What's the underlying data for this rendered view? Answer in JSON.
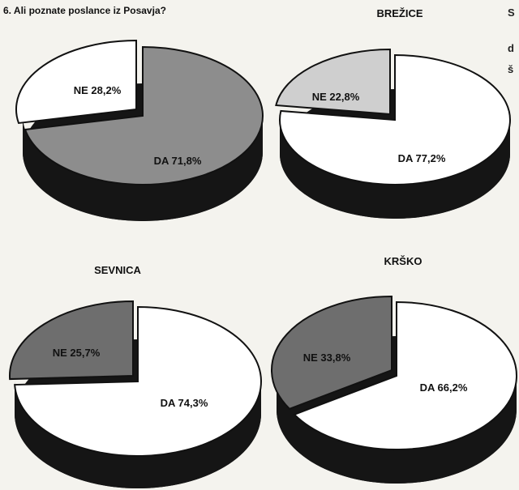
{
  "question": "6. Ali poznate poslance iz Posavja?",
  "edge_text": [
    "S",
    "d",
    "š"
  ],
  "colors": {
    "da_total": "#8d8d8d",
    "ne_brezice": "#cfcfcf",
    "ne_dark": "#6e6e6e",
    "white": "#ffffff",
    "side": "#151515"
  },
  "chart_data": [
    {
      "type": "pie",
      "title": "",
      "slices": [
        {
          "label": "DA",
          "value": 71.8,
          "text": "DA 71,8%"
        },
        {
          "label": "NE",
          "value": 28.2,
          "text": "NE 28,2%"
        }
      ]
    },
    {
      "type": "pie",
      "title": "BREŽICE",
      "slices": [
        {
          "label": "DA",
          "value": 77.2,
          "text": "DA 77,2%"
        },
        {
          "label": "NE",
          "value": 22.8,
          "text": "NE 22,8%"
        }
      ]
    },
    {
      "type": "pie",
      "title": "SEVNICA",
      "slices": [
        {
          "label": "DA",
          "value": 74.3,
          "text": "DA 74,3%"
        },
        {
          "label": "NE",
          "value": 25.7,
          "text": "NE 25,7%"
        }
      ]
    },
    {
      "type": "pie",
      "title": "KRŠKO",
      "slices": [
        {
          "label": "DA",
          "value": 66.2,
          "text": "DA 66,2%"
        },
        {
          "label": "NE",
          "value": 33.8,
          "text": "NE 33,8%"
        }
      ]
    }
  ]
}
